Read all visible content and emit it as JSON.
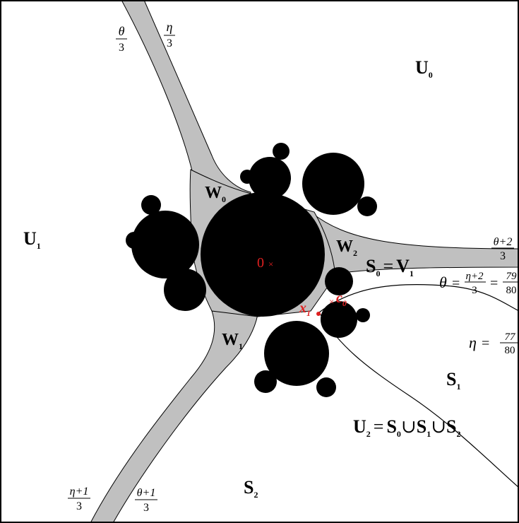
{
  "colors": {
    "background": "#ffffff",
    "band": "#c0c0c0",
    "set": "#000000",
    "ray": "#000000",
    "marker": "#e02020",
    "label": "#000000"
  },
  "regions": {
    "U0": "U",
    "U0_sub": "0",
    "U1": "U",
    "U1_sub": "1",
    "S0": "S",
    "S0_sub": "0",
    "V1": "V",
    "V1_sub": "1",
    "S1": "S",
    "S1_sub": "1",
    "S2": "S",
    "S2_sub": "2",
    "U2": "U",
    "U2_sub": "2",
    "U2_rhs_a": "S",
    "U2_rhs_a_sub": "0",
    "U2_rhs_b": "S",
    "U2_rhs_b_sub": "1",
    "U2_rhs_c": "S",
    "U2_rhs_c_sub": "2",
    "eq": "=",
    "cup": "∪"
  },
  "bands": {
    "W0": "W",
    "W0_sub": "0",
    "W1": "W",
    "W1_sub": "1",
    "W2": "W",
    "W2_sub": "2"
  },
  "angles": {
    "theta_over_3": {
      "num": "θ",
      "den": "3"
    },
    "eta_over_3": {
      "num": "η",
      "den": "3"
    },
    "theta_plus_2": {
      "num": "θ+2",
      "den": "3"
    },
    "eta_plus_1": {
      "num": "η+1",
      "den": "3"
    },
    "theta_plus_1": {
      "num": "θ+1",
      "den": "3"
    },
    "theta_eq": {
      "lhs": "θ",
      "eq": "=",
      "num": "η+2",
      "den": "3",
      "eq2": "=",
      "num2": "79",
      "den2": "80"
    },
    "eta_eq": {
      "lhs": "η",
      "eq": "=",
      "num": "77",
      "den": "80"
    }
  },
  "points": {
    "origin": {
      "label": "0",
      "mark": "×"
    },
    "x1": {
      "label": "x",
      "sub": "1"
    },
    "c0": {
      "label": "c",
      "sub": "0",
      "mark": "×"
    }
  }
}
